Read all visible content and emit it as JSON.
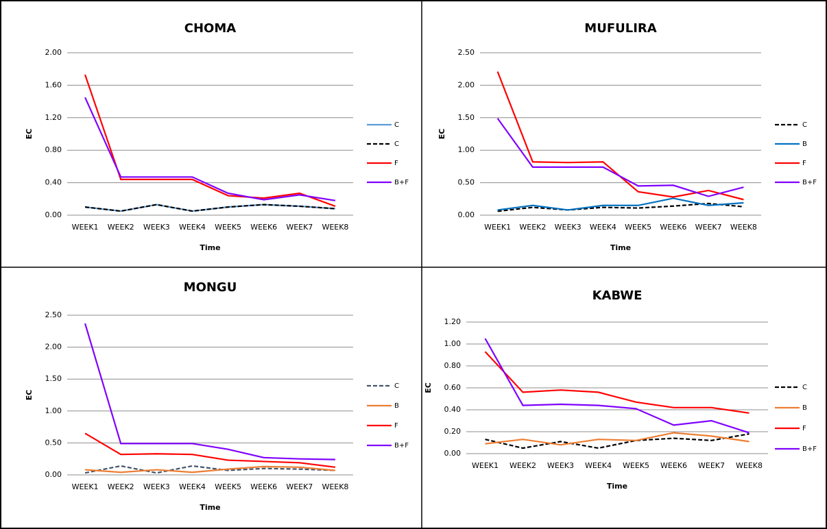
{
  "chart_data": [
    {
      "type": "line",
      "title": "CHOMA",
      "x_label": "Time",
      "y_label": "EC",
      "categories": [
        "WEEK1",
        "WEEK2",
        "WEEK3",
        "WEEK4",
        "WEEK5",
        "WEEK6",
        "WEEK7",
        "WEEK8"
      ],
      "ylim": [
        0,
        2
      ],
      "yticks": [
        {
          "value": 0,
          "label": "0.00"
        },
        {
          "value": 0.4,
          "label": "0.40"
        },
        {
          "value": 0.8,
          "label": "0.80"
        },
        {
          "value": 1.2,
          "label": "1.20"
        },
        {
          "value": 1.6,
          "label": "1.60"
        },
        {
          "value": 2,
          "label": "2.00"
        }
      ],
      "grid": true,
      "series": [
        {
          "name": "C",
          "color": "#5b9bd5",
          "dashed": false,
          "values": [
            0.1,
            0.05,
            0.13,
            0.05,
            0.1,
            0.13,
            0.11,
            0.08
          ]
        },
        {
          "name": "C",
          "color": "#000000",
          "dashed": true,
          "values": [
            0.1,
            0.05,
            0.13,
            0.05,
            0.1,
            0.13,
            0.11,
            0.08
          ]
        },
        {
          "name": "F",
          "color": "#ff0000",
          "dashed": false,
          "values": [
            1.73,
            0.44,
            0.44,
            0.44,
            0.24,
            0.21,
            0.27,
            0.11
          ]
        },
        {
          "name": "B+F",
          "color": "#7f00ff",
          "dashed": false,
          "values": [
            1.45,
            0.47,
            0.47,
            0.47,
            0.27,
            0.19,
            0.25,
            0.18
          ]
        }
      ]
    },
    {
      "type": "line",
      "title": "MUFULIRA",
      "x_label": "Time",
      "y_label": "EC",
      "categories": [
        "WEEK1",
        "WEEK2",
        "WEEK3",
        "WEEK4",
        "WEEK5",
        "WEEK6",
        "WEEK7",
        "WEEK8"
      ],
      "ylim": [
        0,
        2.5
      ],
      "yticks": [
        {
          "value": 0,
          "label": "0.00"
        },
        {
          "value": 0.5,
          "label": "0.50"
        },
        {
          "value": 1,
          "label": "1.00"
        },
        {
          "value": 1.5,
          "label": "1.50"
        },
        {
          "value": 2,
          "label": "2.00"
        },
        {
          "value": 2.5,
          "label": "2.50"
        }
      ],
      "grid": true,
      "series": [
        {
          "name": "C",
          "color": "#000000",
          "dashed": true,
          "values": [
            0.06,
            0.12,
            0.08,
            0.12,
            0.11,
            0.14,
            0.18,
            0.13
          ]
        },
        {
          "name": "B",
          "color": "#0070c0",
          "dashed": false,
          "values": [
            0.08,
            0.15,
            0.08,
            0.15,
            0.15,
            0.26,
            0.15,
            0.19
          ]
        },
        {
          "name": "F",
          "color": "#ff0000",
          "dashed": false,
          "values": [
            2.21,
            0.82,
            0.81,
            0.82,
            0.36,
            0.28,
            0.38,
            0.24
          ]
        },
        {
          "name": "B+F",
          "color": "#7f00ff",
          "dashed": false,
          "values": [
            1.49,
            0.74,
            0.74,
            0.74,
            0.45,
            0.46,
            0.29,
            0.43
          ]
        }
      ]
    },
    {
      "type": "line",
      "title": "MONGU",
      "x_label": "Time",
      "y_label": "EC",
      "categories": [
        "WEEK1",
        "WEEK2",
        "WEEK3",
        "WEEK4",
        "WEEK5",
        "WEEK6",
        "WEEK7",
        "WEEK8"
      ],
      "ylim": [
        0,
        2.5
      ],
      "yticks": [
        {
          "value": 0,
          "label": "0.00"
        },
        {
          "value": 0.5,
          "label": "0.50"
        },
        {
          "value": 1,
          "label": "1.00"
        },
        {
          "value": 1.5,
          "label": "1.50"
        },
        {
          "value": 2,
          "label": "2.00"
        },
        {
          "value": 2.5,
          "label": "2.50"
        }
      ],
      "grid": true,
      "series": [
        {
          "name": "C",
          "color": "#44546a",
          "dashed": true,
          "values": [
            0.03,
            0.14,
            0.03,
            0.14,
            0.07,
            0.1,
            0.09,
            0.07
          ]
        },
        {
          "name": "B",
          "color": "#ed7d31",
          "dashed": false,
          "values": [
            0.08,
            0.04,
            0.08,
            0.04,
            0.09,
            0.13,
            0.12,
            0.07
          ]
        },
        {
          "name": "F",
          "color": "#ff0000",
          "dashed": false,
          "values": [
            0.65,
            0.32,
            0.33,
            0.32,
            0.23,
            0.21,
            0.19,
            0.12
          ]
        },
        {
          "name": "B+F",
          "color": "#7f00ff",
          "dashed": false,
          "values": [
            2.37,
            0.49,
            0.49,
            0.49,
            0.4,
            0.27,
            0.25,
            0.24
          ]
        }
      ]
    },
    {
      "type": "line",
      "title": "KABWE",
      "x_label": "Time",
      "y_label": "EC",
      "categories": [
        "WEEK1",
        "WEEK2",
        "WEEK3",
        "WEEK4",
        "WEEK5",
        "WEEK6",
        "WEEK7",
        "WEEK8"
      ],
      "ylim": [
        0,
        1.2
      ],
      "yticks": [
        {
          "value": 0,
          "label": "0.00"
        },
        {
          "value": 0.2,
          "label": "0.20"
        },
        {
          "value": 0.4,
          "label": "0.40"
        },
        {
          "value": 0.6,
          "label": "0.60"
        },
        {
          "value": 0.8,
          "label": "0.80"
        },
        {
          "value": 1,
          "label": "1.00"
        },
        {
          "value": 1.2,
          "label": "1.20"
        }
      ],
      "grid": true,
      "series": [
        {
          "name": "C",
          "color": "#000000",
          "dashed": true,
          "values": [
            0.13,
            0.05,
            0.11,
            0.05,
            0.12,
            0.14,
            0.12,
            0.18
          ]
        },
        {
          "name": "B",
          "color": "#ed7d31",
          "dashed": false,
          "values": [
            0.09,
            0.13,
            0.08,
            0.13,
            0.12,
            0.19,
            0.16,
            0.11
          ]
        },
        {
          "name": "F",
          "color": "#ff0000",
          "dashed": false,
          "values": [
            0.93,
            0.56,
            0.58,
            0.56,
            0.47,
            0.42,
            0.42,
            0.37
          ]
        },
        {
          "name": "B+F",
          "color": "#7f00ff",
          "dashed": false,
          "values": [
            1.05,
            0.44,
            0.45,
            0.44,
            0.41,
            0.26,
            0.3,
            0.19
          ]
        }
      ]
    }
  ]
}
